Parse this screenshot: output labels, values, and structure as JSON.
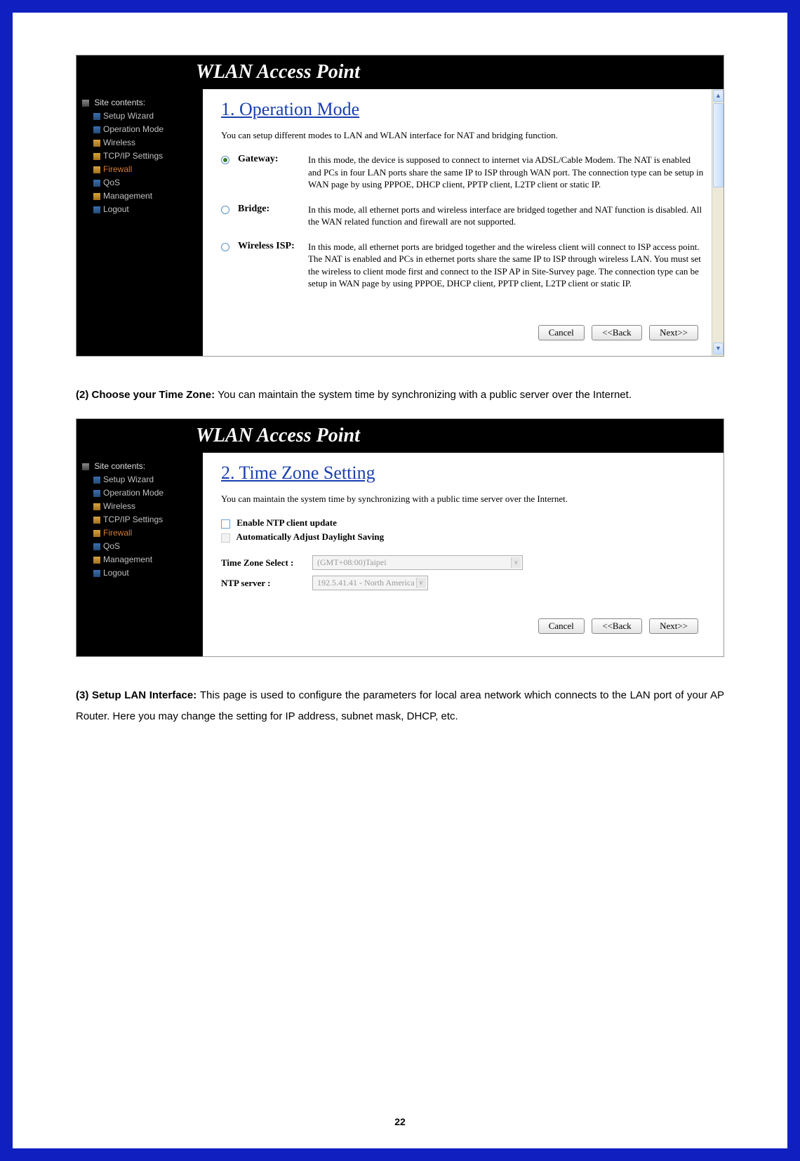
{
  "header_title": "WLAN Access Point",
  "sidebar": {
    "root": "Site contents:",
    "items": [
      {
        "label": "Setup Wizard",
        "icon": "blue"
      },
      {
        "label": "Operation Mode",
        "icon": "blue"
      },
      {
        "label": "Wireless",
        "icon": "folder"
      },
      {
        "label": "TCP/IP Settings",
        "icon": "folder"
      },
      {
        "label": "Firewall",
        "icon": "folder",
        "orange": true
      },
      {
        "label": "QoS",
        "icon": "blue"
      },
      {
        "label": "Management",
        "icon": "folder"
      },
      {
        "label": "Logout",
        "icon": "blue"
      }
    ]
  },
  "ss1": {
    "title": "1. Operation Mode",
    "desc": "You can setup different modes to LAN and WLAN interface for NAT and bridging function.",
    "modes": [
      {
        "label": "Gateway:",
        "selected": true,
        "desc": "In this mode, the device is supposed to connect to internet via ADSL/Cable Modem. The NAT is enabled and PCs in four LAN ports share the same IP to ISP through WAN port. The connection type can be setup in WAN page by using PPPOE, DHCP client, PPTP client, L2TP client or static IP."
      },
      {
        "label": "Bridge:",
        "selected": false,
        "desc": "In this mode, all ethernet ports and wireless interface are bridged together and NAT function is disabled. All the WAN related function and firewall are not supported."
      },
      {
        "label": "Wireless ISP:",
        "selected": false,
        "desc": "In this mode, all ethernet ports are bridged together and the wireless client will connect to ISP access point. The NAT is enabled and PCs in ethernet ports share the same IP to ISP through wireless LAN. You must set the wireless to client mode first and connect to the ISP AP in Site-Survey page. The connection type can be setup in WAN page by using PPPOE, DHCP client, PPTP client, L2TP client or static IP."
      }
    ]
  },
  "ss2": {
    "title": "2. Time Zone Setting",
    "desc": "You can maintain the system time by synchronizing with a public time server over the Internet.",
    "cb1": "Enable NTP client update",
    "cb2": "Automatically Adjust Daylight Saving",
    "tz_label": "Time Zone Select :",
    "tz_value": "(GMT+08:00)Taipei",
    "ntp_label": "NTP server :",
    "ntp_value": "192.5.41.41 - North America"
  },
  "buttons": {
    "cancel": "Cancel",
    "back": "<<Back",
    "next": "Next>>"
  },
  "doc": {
    "p2_bold": "(2) Choose your Time Zone: ",
    "p2_rest": "You can maintain the system time by synchronizing with a public server over the Internet.",
    "p3_bold": "(3) Setup LAN Interface: ",
    "p3_rest": "This page is used to configure the parameters for local area network which connects to the LAN port of your AP Router. Here you may change the setting for IP address, subnet mask, DHCP, etc."
  },
  "page_number": "22",
  "colors": {
    "outer_border": "#1020c0",
    "title_blue": "#1a3fb0",
    "sidebar_bg": "#000000",
    "orange": "#d97a2a"
  }
}
